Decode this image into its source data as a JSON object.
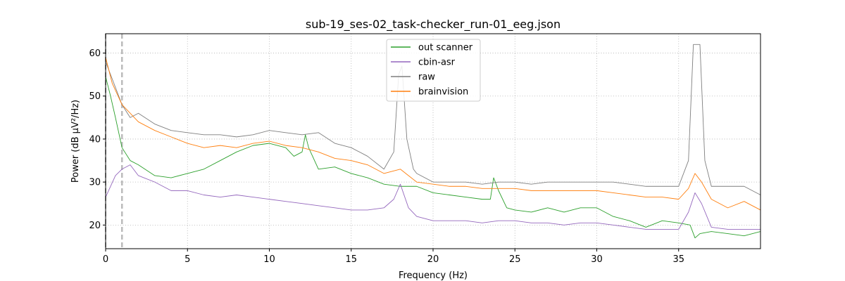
{
  "chart_data": {
    "type": "line",
    "title": "sub-19_ses-02_task-checker_run-01_eeg.json",
    "xlabel": "Frequency (Hz)",
    "ylabel": "Power (dB µV²/Hz)",
    "xlim": [
      0,
      40
    ],
    "ylim": [
      14.5,
      64.5
    ],
    "x_ticks": [
      0,
      5,
      10,
      15,
      20,
      25,
      30,
      35
    ],
    "y_ticks": [
      20,
      30,
      40,
      50,
      60
    ],
    "grid": true,
    "grid_style": "dotted",
    "legend_position": "top-center",
    "vertical_lines": [
      {
        "x": 0.0,
        "color": "#555555",
        "style": "dashed"
      },
      {
        "x": 1.0,
        "color": "#bbbbbb",
        "style": "dashed"
      }
    ],
    "series": [
      {
        "name": "out scanner",
        "color": "#2ca02c",
        "points": [
          [
            0,
            54.5
          ],
          [
            0.3,
            50
          ],
          [
            0.6,
            45
          ],
          [
            1.0,
            38
          ],
          [
            1.5,
            35
          ],
          [
            2,
            34
          ],
          [
            3,
            31.5
          ],
          [
            4,
            31
          ],
          [
            5,
            32
          ],
          [
            6,
            33
          ],
          [
            7,
            35
          ],
          [
            7.5,
            36
          ],
          [
            8,
            37
          ],
          [
            9,
            38.5
          ],
          [
            10,
            39
          ],
          [
            11,
            38
          ],
          [
            11.5,
            36
          ],
          [
            12,
            37
          ],
          [
            12.2,
            41
          ],
          [
            12.4,
            38
          ],
          [
            13,
            33
          ],
          [
            14,
            33.5
          ],
          [
            15,
            32
          ],
          [
            16,
            31
          ],
          [
            17,
            29.5
          ],
          [
            18,
            29
          ],
          [
            19,
            29
          ],
          [
            20,
            27.5
          ],
          [
            21,
            27
          ],
          [
            22,
            26.5
          ],
          [
            23,
            26
          ],
          [
            23.5,
            26
          ],
          [
            23.7,
            31
          ],
          [
            24,
            28
          ],
          [
            24.5,
            24
          ],
          [
            25,
            23.5
          ],
          [
            26,
            23
          ],
          [
            27,
            24
          ],
          [
            28,
            23
          ],
          [
            29,
            24
          ],
          [
            30,
            24
          ],
          [
            31,
            22
          ],
          [
            32,
            21
          ],
          [
            33,
            19.5
          ],
          [
            34,
            21
          ],
          [
            35,
            20.5
          ],
          [
            35.7,
            20
          ],
          [
            36,
            17
          ],
          [
            36.3,
            18
          ],
          [
            37,
            18.5
          ],
          [
            38,
            18
          ],
          [
            39,
            17.5
          ],
          [
            40,
            18.5
          ]
        ]
      },
      {
        "name": "cbin-asr",
        "color": "#9467bd",
        "points": [
          [
            0,
            26.5
          ],
          [
            0.3,
            29
          ],
          [
            0.6,
            31.5
          ],
          [
            1,
            33
          ],
          [
            1.5,
            34
          ],
          [
            2,
            31.5
          ],
          [
            3,
            30
          ],
          [
            4,
            28
          ],
          [
            5,
            28
          ],
          [
            6,
            27
          ],
          [
            7,
            26.5
          ],
          [
            8,
            27
          ],
          [
            9,
            26.5
          ],
          [
            10,
            26
          ],
          [
            11,
            25.5
          ],
          [
            12,
            25
          ],
          [
            13,
            24.5
          ],
          [
            14,
            24
          ],
          [
            15,
            23.5
          ],
          [
            16,
            23.5
          ],
          [
            17,
            24
          ],
          [
            17.6,
            26
          ],
          [
            18,
            29.5
          ],
          [
            18.5,
            24
          ],
          [
            19,
            22
          ],
          [
            20,
            21
          ],
          [
            21,
            21
          ],
          [
            22,
            21
          ],
          [
            23,
            20.5
          ],
          [
            24,
            21
          ],
          [
            25,
            21
          ],
          [
            26,
            20.5
          ],
          [
            27,
            20.5
          ],
          [
            28,
            20
          ],
          [
            29,
            20.5
          ],
          [
            30,
            20.5
          ],
          [
            31,
            20
          ],
          [
            32,
            19.5
          ],
          [
            33,
            19
          ],
          [
            34,
            19
          ],
          [
            35,
            19
          ],
          [
            35.6,
            23
          ],
          [
            36,
            27.5
          ],
          [
            36.4,
            25
          ],
          [
            37,
            19.5
          ],
          [
            38,
            19
          ],
          [
            39,
            19
          ],
          [
            40,
            19
          ]
        ]
      },
      {
        "name": "raw",
        "color": "#7f7f7f",
        "points": [
          [
            0,
            58
          ],
          [
            0.4,
            54
          ],
          [
            1,
            48
          ],
          [
            1.5,
            45
          ],
          [
            2,
            46
          ],
          [
            3,
            43.5
          ],
          [
            4,
            42
          ],
          [
            5,
            41.5
          ],
          [
            6,
            41
          ],
          [
            7,
            41
          ],
          [
            8,
            40.5
          ],
          [
            9,
            41
          ],
          [
            10,
            42
          ],
          [
            11,
            41.5
          ],
          [
            12,
            41
          ],
          [
            13,
            41.5
          ],
          [
            14,
            39
          ],
          [
            15,
            38
          ],
          [
            16,
            36
          ],
          [
            17,
            33
          ],
          [
            17.6,
            37
          ],
          [
            17.9,
            55
          ],
          [
            18.1,
            57
          ],
          [
            18.4,
            40
          ],
          [
            18.8,
            33
          ],
          [
            19,
            32
          ],
          [
            20,
            30
          ],
          [
            21,
            30
          ],
          [
            22,
            30
          ],
          [
            23,
            29.5
          ],
          [
            24,
            30
          ],
          [
            25,
            30
          ],
          [
            26,
            29.5
          ],
          [
            27,
            30
          ],
          [
            28,
            30
          ],
          [
            29,
            30
          ],
          [
            30,
            30
          ],
          [
            31,
            30
          ],
          [
            32,
            29.5
          ],
          [
            33,
            29
          ],
          [
            34,
            29
          ],
          [
            35,
            29
          ],
          [
            35.6,
            35
          ],
          [
            35.9,
            62
          ],
          [
            36.3,
            62
          ],
          [
            36.6,
            35
          ],
          [
            37,
            29
          ],
          [
            38,
            29
          ],
          [
            39,
            29
          ],
          [
            40,
            27
          ]
        ]
      },
      {
        "name": "brainvision",
        "color": "#ff7f0e",
        "points": [
          [
            0,
            59
          ],
          [
            0.4,
            53
          ],
          [
            1,
            48
          ],
          [
            1.5,
            46
          ],
          [
            2,
            44
          ],
          [
            3,
            42
          ],
          [
            4,
            40.5
          ],
          [
            5,
            39
          ],
          [
            6,
            38
          ],
          [
            7,
            38.5
          ],
          [
            8,
            38
          ],
          [
            9,
            39
          ],
          [
            10,
            39.5
          ],
          [
            11,
            38.5
          ],
          [
            12,
            38
          ],
          [
            13,
            37
          ],
          [
            14,
            35.5
          ],
          [
            15,
            35
          ],
          [
            16,
            34
          ],
          [
            17,
            32
          ],
          [
            18,
            33
          ],
          [
            18.5,
            31.5
          ],
          [
            19,
            30
          ],
          [
            20,
            29.5
          ],
          [
            21,
            29
          ],
          [
            22,
            29
          ],
          [
            23,
            28.5
          ],
          [
            24,
            28.5
          ],
          [
            25,
            28.5
          ],
          [
            26,
            28
          ],
          [
            27,
            28
          ],
          [
            28,
            28
          ],
          [
            29,
            28
          ],
          [
            30,
            28
          ],
          [
            31,
            27.5
          ],
          [
            32,
            27
          ],
          [
            33,
            26.5
          ],
          [
            34,
            26.5
          ],
          [
            35,
            26
          ],
          [
            35.6,
            28.5
          ],
          [
            36,
            32
          ],
          [
            36.4,
            30
          ],
          [
            37,
            26
          ],
          [
            38,
            24
          ],
          [
            39,
            25.5
          ],
          [
            40,
            23.5
          ]
        ]
      }
    ]
  }
}
